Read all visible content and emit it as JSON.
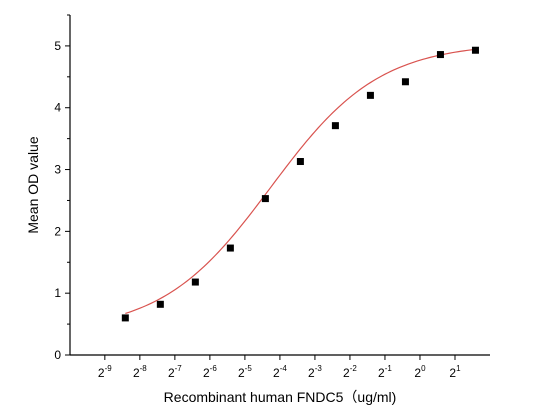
{
  "chart_data": {
    "type": "scatter",
    "xlabel": "Recombinant human  FNDC5（ug/ml)",
    "ylabel": "Mean OD value",
    "x_scale": "log2",
    "x_tick_base": "2",
    "x_tick_exponents": [
      "-9",
      "-8",
      "-7",
      "-6",
      "-5",
      "-4",
      "-3",
      "-2",
      "-1",
      "0",
      "1"
    ],
    "xlim": [
      0.00098,
      4.0
    ],
    "ylim": [
      0,
      5.5
    ],
    "y_ticks": [
      "0",
      "1",
      "2",
      "3",
      "4",
      "5"
    ],
    "grid": false,
    "series": [
      {
        "marker": "square",
        "color": "#000000",
        "x": [
          0.00293,
          0.00586,
          0.01172,
          0.02344,
          0.04688,
          0.09375,
          0.1875,
          0.375,
          0.75,
          1.5,
          3.0
        ],
        "y": [
          0.6,
          0.82,
          1.18,
          1.73,
          2.53,
          3.13,
          3.71,
          4.2,
          4.42,
          4.86,
          4.93
        ]
      }
    ],
    "fit_curve": {
      "color": "#d9534f",
      "model": "4PL",
      "bottom": 0.37,
      "top": 5.05,
      "ec50": 0.052,
      "hill": 0.93
    }
  }
}
